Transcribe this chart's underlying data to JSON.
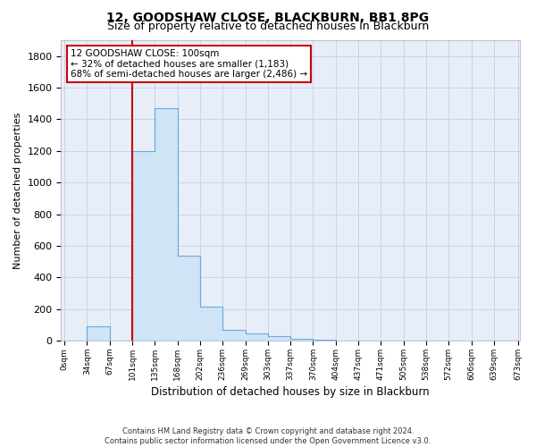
{
  "title": "12, GOODSHAW CLOSE, BLACKBURN, BB1 8PG",
  "subtitle": "Size of property relative to detached houses in Blackburn",
  "xlabel": "Distribution of detached houses by size in Blackburn",
  "ylabel": "Number of detached properties",
  "footnote1": "Contains HM Land Registry data © Crown copyright and database right 2024.",
  "footnote2": "Contains public sector information licensed under the Open Government Licence v3.0.",
  "bin_edges": [
    0,
    33.5,
    67,
    100.5,
    134,
    167.5,
    201,
    234.5,
    268,
    301.5,
    335,
    368.5,
    402,
    435.5,
    469,
    502.5,
    536,
    569.5,
    603,
    636.5,
    673
  ],
  "bar_heights": [
    0,
    90,
    0,
    1200,
    1470,
    535,
    215,
    70,
    45,
    30,
    10,
    5,
    0,
    0,
    0,
    0,
    0,
    0,
    0,
    0
  ],
  "bar_color": "#d0e4f7",
  "bar_edgecolor": "#6aabdc",
  "grid_color": "#c8d4e8",
  "bg_color": "#e8eef8",
  "property_line_x": 100.5,
  "property_line_color": "#cc0000",
  "annotation_text": "12 GOODSHAW CLOSE: 100sqm\n← 32% of detached houses are smaller (1,183)\n68% of semi-detached houses are larger (2,486) →",
  "annotation_box_color": "white",
  "annotation_border_color": "#cc0000",
  "xlim": [
    -5,
    675
  ],
  "ylim": [
    0,
    1900
  ],
  "yticks": [
    0,
    200,
    400,
    600,
    800,
    1000,
    1200,
    1400,
    1600,
    1800
  ],
  "xtick_labels": [
    "0sqm",
    "34sqm",
    "67sqm",
    "101sqm",
    "135sqm",
    "168sqm",
    "202sqm",
    "236sqm",
    "269sqm",
    "303sqm",
    "337sqm",
    "370sqm",
    "404sqm",
    "437sqm",
    "471sqm",
    "505sqm",
    "538sqm",
    "572sqm",
    "606sqm",
    "639sqm",
    "673sqm"
  ],
  "xtick_positions": [
    0,
    33.5,
    67,
    100.5,
    134,
    167.5,
    201,
    234.5,
    268,
    301.5,
    335,
    368.5,
    402,
    435.5,
    469,
    502.5,
    536,
    569.5,
    603,
    636.5,
    673
  ],
  "title_fontsize": 10,
  "subtitle_fontsize": 9,
  "ylabel_fontsize": 8,
  "xlabel_fontsize": 8.5,
  "ytick_fontsize": 8,
  "xtick_fontsize": 6.5,
  "footnote_fontsize": 6,
  "annotation_fontsize": 7.5
}
